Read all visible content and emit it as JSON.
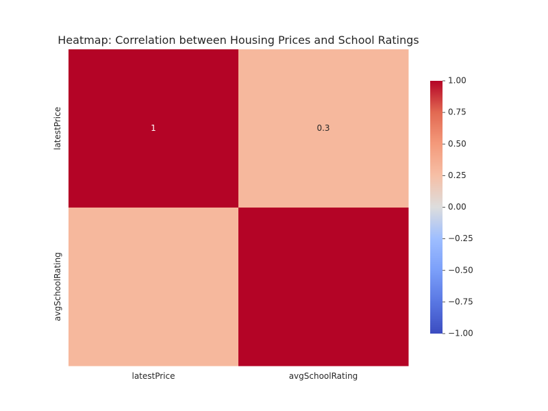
{
  "chart_data": {
    "type": "heatmap",
    "title": "Heatmap: Correlation between Housing Prices and School Ratings",
    "x_categories": [
      "latestPrice",
      "avgSchoolRating"
    ],
    "y_categories": [
      "latestPrice",
      "avgSchoolRating"
    ],
    "values": [
      [
        1.0,
        0.3
      ],
      [
        0.3,
        1.0
      ]
    ],
    "annotations": [
      [
        "1",
        "0.3"
      ],
      [
        "",
        ""
      ]
    ],
    "colormap": "coolwarm",
    "color_range": [
      -1.0,
      1.0
    ],
    "colorbar_ticks": [
      "1.00",
      "0.75",
      "0.50",
      "0.25",
      "0.00",
      "−0.25",
      "−0.50",
      "−0.75",
      "−1.00"
    ],
    "colorbar_tick_values": [
      1.0,
      0.75,
      0.5,
      0.25,
      0.0,
      -0.25,
      -0.5,
      -0.75,
      -1.0
    ],
    "colors": {
      "high": "#b40426",
      "mid": "#dddddd",
      "low": "#3b4cc0"
    },
    "grid": false,
    "colorbar_position": "right"
  }
}
